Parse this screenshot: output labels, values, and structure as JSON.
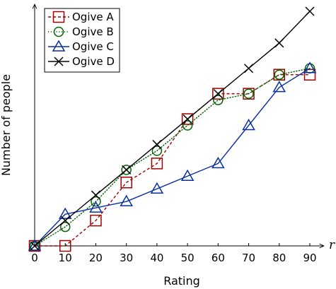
{
  "chart_data": {
    "type": "line",
    "title": "",
    "xlabel": "Rating",
    "ylabel": "Number of people",
    "x_axis_end_label": "r",
    "x": [
      0,
      10,
      20,
      30,
      40,
      50,
      60,
      70,
      80,
      90
    ],
    "x_ticks": [
      "0",
      "10",
      "20",
      "30",
      "40",
      "50",
      "60",
      "70",
      "80",
      "90"
    ],
    "y_ticks": [],
    "xlim": [
      0,
      96
    ],
    "ylim": [
      0,
      38
    ],
    "grid": false,
    "legend_position": "top-left",
    "series": [
      {
        "name": "Ogive A",
        "marker": "square",
        "line_style": "dashed",
        "color": "#a00000",
        "values": [
          0,
          0,
          4,
          10,
          13,
          20,
          24,
          24,
          27,
          27
        ]
      },
      {
        "name": "Ogive B",
        "marker": "circle",
        "line_style": "dotted",
        "color": "#006400",
        "values": [
          0,
          3,
          7,
          12,
          15,
          19,
          23,
          24,
          27,
          28
        ]
      },
      {
        "name": "Ogive C",
        "marker": "triangle",
        "line_style": "solid",
        "color": "#0a2ea0",
        "values": [
          0,
          5,
          6,
          7,
          9,
          11,
          13,
          19,
          25,
          28
        ]
      },
      {
        "name": "Ogive D",
        "marker": "cross",
        "line_style": "solid",
        "color": "#000000",
        "values": [
          0,
          4,
          8,
          12,
          16,
          20,
          24,
          28,
          32,
          37
        ]
      }
    ]
  }
}
